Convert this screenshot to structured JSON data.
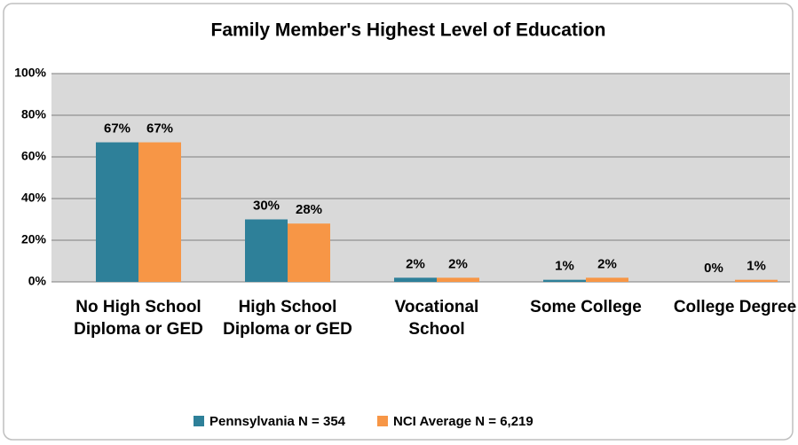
{
  "chart_data": {
    "type": "bar",
    "title": "Family Member's Highest Level of Education",
    "categories": [
      "No High School Diploma or GED",
      "High School Diploma or GED",
      "Vocational School",
      "Some College",
      "College Degree"
    ],
    "series": [
      {
        "name": "Pennsylvania N = 354",
        "color": "#2e8099",
        "values": [
          67,
          30,
          2,
          1,
          0
        ],
        "value_labels": [
          "67%",
          "30%",
          "2%",
          "1%",
          "0%"
        ]
      },
      {
        "name": "NCI Average N = 6,219",
        "color": "#f79646",
        "values": [
          67,
          28,
          2,
          2,
          1
        ],
        "value_labels": [
          "67%",
          "28%",
          "2%",
          "2%",
          "1%"
        ]
      }
    ],
    "ylim": [
      0,
      100
    ],
    "yticks": [
      {
        "value": 0,
        "label": "0%"
      },
      {
        "value": 20,
        "label": "20%"
      },
      {
        "value": 40,
        "label": "40%"
      },
      {
        "value": 60,
        "label": "60%"
      },
      {
        "value": 80,
        "label": "80%"
      },
      {
        "value": 100,
        "label": "100%"
      }
    ],
    "grid": true,
    "legend": "bottom"
  }
}
